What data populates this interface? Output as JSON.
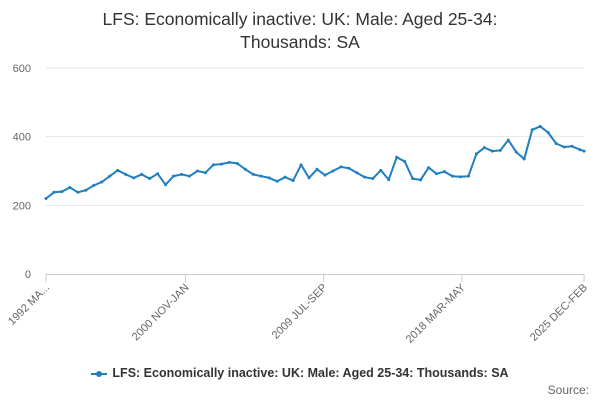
{
  "title_line1": "LFS: Economically inactive: UK: Male: Aged 25-34:",
  "title_line2": "Thousands: SA",
  "source_label": "Source:",
  "colors": {
    "series": "#1f7fbf",
    "grid": "#e6e6e6",
    "axis": "#cccccc"
  },
  "chart_data": {
    "type": "line",
    "title": "LFS: Economically inactive: UK: Male: Aged 25-34: Thousands: SA",
    "ylim": [
      0,
      600
    ],
    "yticks": [
      0,
      200,
      400,
      600
    ],
    "grid": true,
    "legend_position": "bottom",
    "xlim": [
      "1992-03",
      "2025-12"
    ],
    "xticks": [
      {
        "label": "1992 MA...",
        "date": "1992-03"
      },
      {
        "label": "2000 NOV-JAN",
        "date": "2000-12"
      },
      {
        "label": "2009 JUL-SEP",
        "date": "2009-08"
      },
      {
        "label": "2018 MAR-MAY",
        "date": "2018-04"
      },
      {
        "label": "2025 DEC-FEB",
        "date": "2025-12"
      }
    ],
    "series": [
      {
        "name": "LFS: Economically inactive: UK: Male: Aged 25-34: Thousands: SA",
        "x": [
          "1992-03",
          "1992-09",
          "1993-03",
          "1993-09",
          "1994-03",
          "1994-09",
          "1995-03",
          "1995-09",
          "1996-03",
          "1996-09",
          "1997-03",
          "1997-09",
          "1998-03",
          "1998-09",
          "1999-03",
          "1999-09",
          "2000-03",
          "2000-09",
          "2001-03",
          "2001-09",
          "2002-03",
          "2002-09",
          "2003-03",
          "2003-09",
          "2004-03",
          "2004-09",
          "2005-03",
          "2005-09",
          "2006-03",
          "2006-09",
          "2007-03",
          "2007-09",
          "2008-03",
          "2008-09",
          "2009-03",
          "2009-09",
          "2010-03",
          "2010-09",
          "2011-03",
          "2011-09",
          "2012-03",
          "2012-09",
          "2013-03",
          "2013-09",
          "2014-03",
          "2014-09",
          "2015-03",
          "2015-09",
          "2016-03",
          "2016-09",
          "2017-03",
          "2017-09",
          "2018-03",
          "2018-09",
          "2019-03",
          "2019-09",
          "2020-03",
          "2020-09",
          "2021-03",
          "2021-09",
          "2022-03",
          "2022-09",
          "2023-03",
          "2023-09",
          "2024-03",
          "2024-09",
          "2025-03",
          "2025-09",
          "2025-12"
        ],
        "values": [
          220,
          238,
          240,
          252,
          238,
          244,
          258,
          268,
          285,
          302,
          290,
          280,
          290,
          278,
          292,
          260,
          285,
          290,
          285,
          300,
          295,
          318,
          320,
          325,
          322,
          305,
          290,
          285,
          280,
          270,
          282,
          272,
          318,
          280,
          305,
          288,
          300,
          312,
          308,
          295,
          282,
          278,
          302,
          275,
          340,
          328,
          278,
          274,
          310,
          292,
          298,
          285,
          283,
          285,
          350,
          368,
          358,
          360,
          390,
          355,
          335,
          420,
          430,
          412,
          380,
          370,
          372,
          362,
          358
        ]
      }
    ]
  }
}
